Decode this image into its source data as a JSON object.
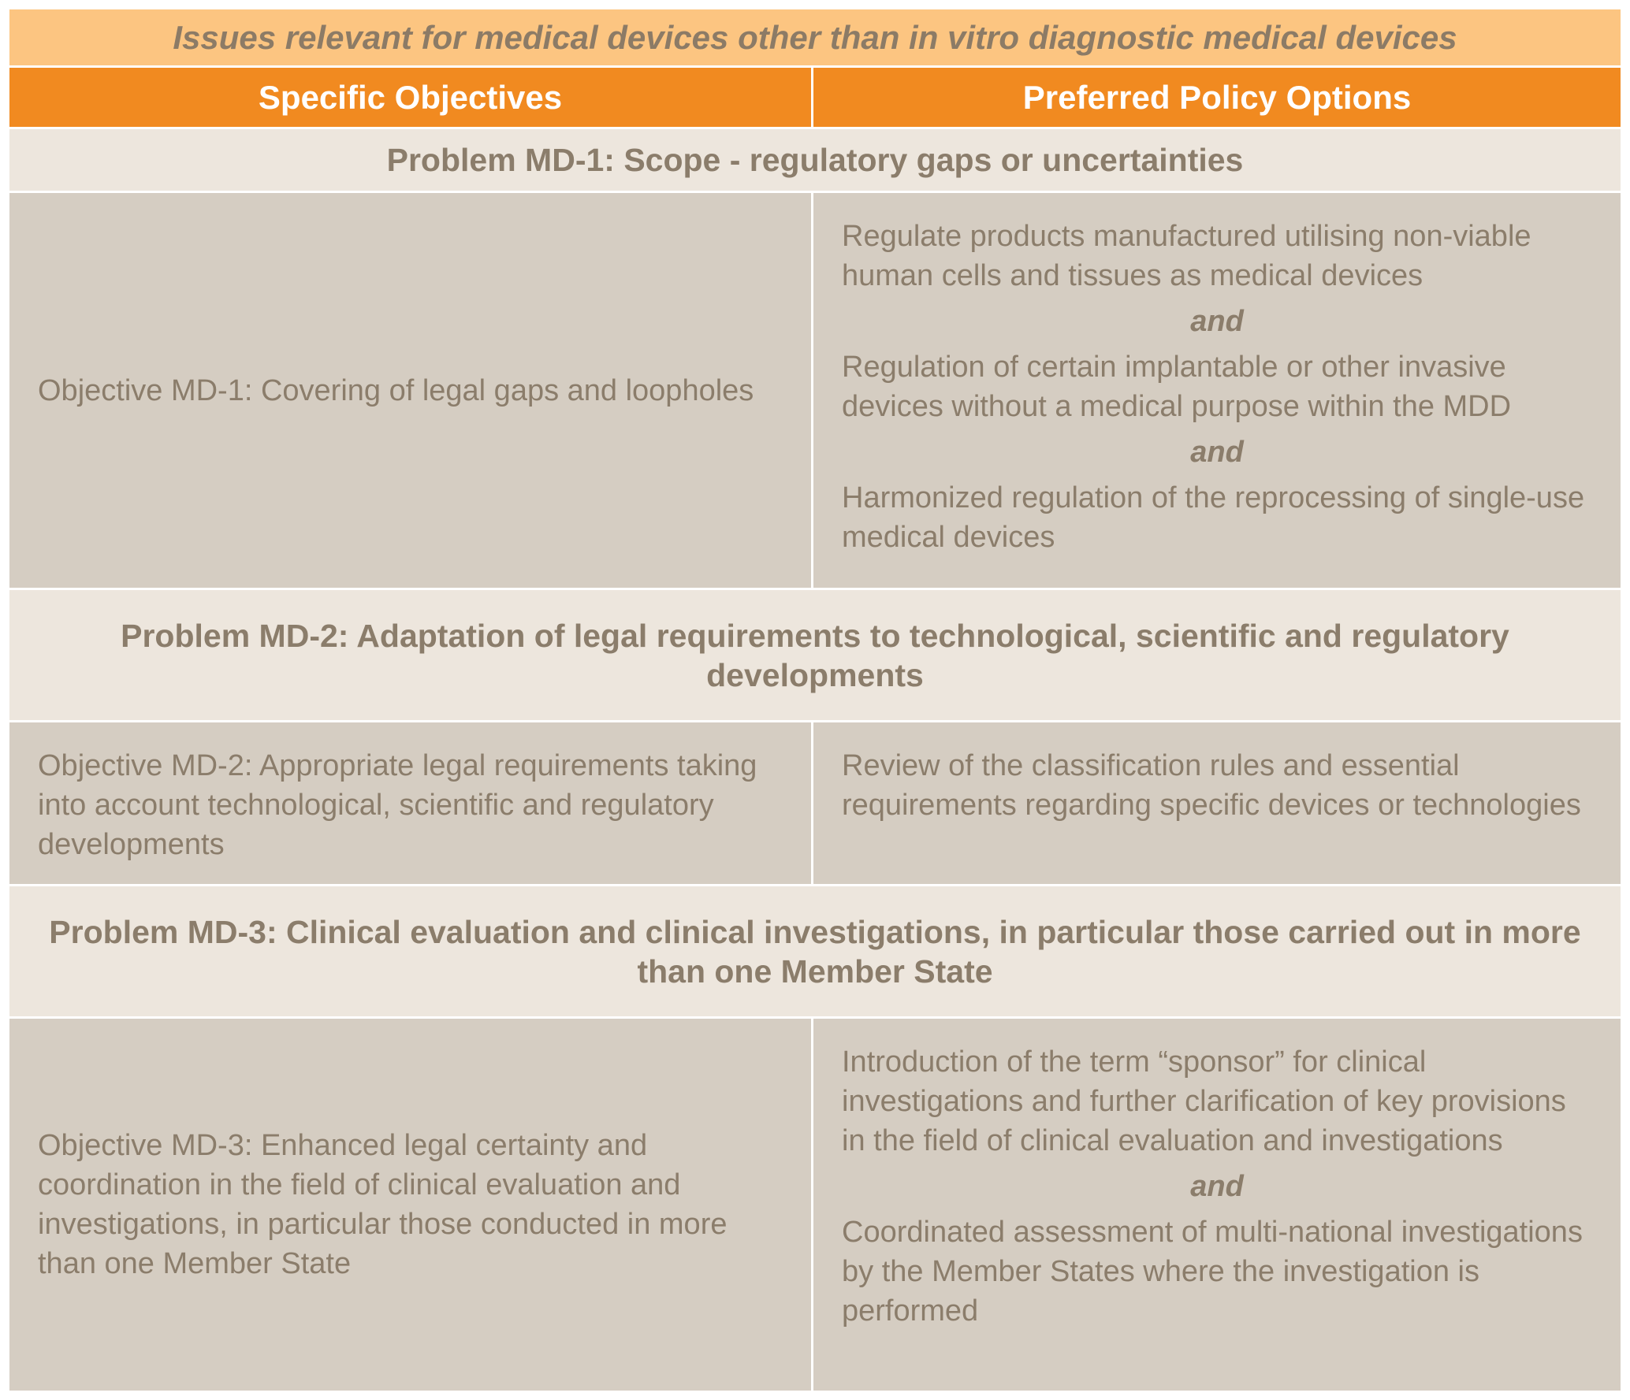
{
  "title": "Issues relevant for medical devices other than in vitro diagnostic medical devices",
  "headers": {
    "left": "Specific Objectives",
    "right": "Preferred Policy Options"
  },
  "connector": "and",
  "problems": [
    {
      "heading": "Problem MD-1: Scope - regulatory gaps or uncertainties",
      "objective": "Objective MD-1: Covering of legal gaps and loopholes",
      "options": [
        "Regulate products manufactured utilising non-viable human cells and tissues as medical devices",
        "Regulation of certain implantable or other invasive devices without a medical purpose within the MDD",
        "Harmonized regulation of the reprocessing of single-use medical devices"
      ]
    },
    {
      "heading": "Problem MD-2: Adaptation of legal requirements to technological, scientific and regulatory developments",
      "objective": "Objective MD-2: Appropriate legal requirements taking into account technological, scientific and regulatory developments",
      "options": [
        "Review of the classification rules and essential requirements regarding specific devices or technologies"
      ]
    },
    {
      "heading": "Problem MD-3: Clinical evaluation and clinical investigations, in particular those carried out in more than one Member State",
      "objective": "Objective MD-3: Enhanced legal certainty and coordination in the field of clinical evaluation and investigations, in particular those conducted in more than one Member State",
      "options": [
        "Introduction of the term “sponsor” for clinical investigations and further clarification of key provisions in the field of clinical evaluation and investigations",
        "Coordinated assessment of multi-national investigations by the Member States where the investigation is performed"
      ]
    }
  ]
}
